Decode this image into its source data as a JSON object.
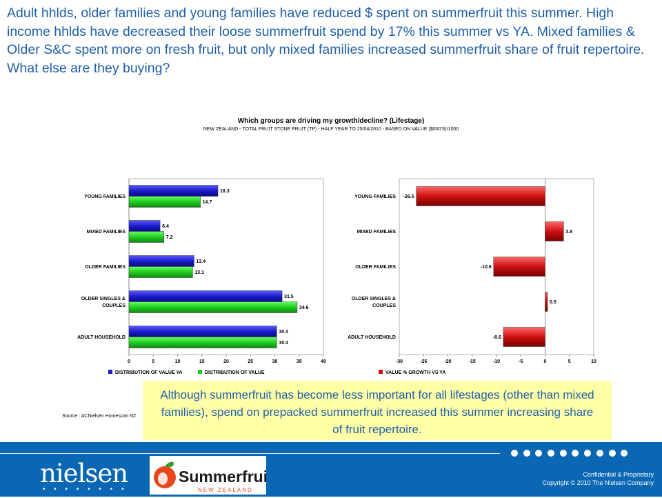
{
  "headline": "Adult hhlds, older families and young families have reduced $ spent on summerfruit this summer. High income hhlds have decreased their loose summerfruit spend by 17% this summer vs YA. Mixed families & Older S&C spent more on fresh fruit, but only mixed families increased summerfruit share of fruit repertoire. What else are they buying?",
  "chart_title": "Which groups are driving my growth/decline? (Lifestage)",
  "chart_subtitle": "NEW ZEALAND - TOTAL  FRUIT STONE FRUIT (TP)  - HALF YEAR TO 25/04/2010  - BASED ON VALUE ($000'S)/1000",
  "source": "Source : ACNielsen Homescan NZ",
  "callout": "Although summerfruit has become less important for all lifestages (other than mixed families), spend on prepacked summerfruit increased this summer increasing share of fruit repertoire.",
  "chart_data": [
    {
      "type": "bar",
      "orientation": "horizontal",
      "categories": [
        "YOUNG FAMILIES",
        "MIXED FAMILIES",
        "OLDER FAMILIES",
        "OLDER SINGLES & COUPLES",
        "ADULT HOUSEHOLD"
      ],
      "series": [
        {
          "name": "DISTRIBUTION OF VALUE YA",
          "values": [
            18.3,
            6.4,
            13.4,
            31.5,
            30.4
          ],
          "color": "#1c1ccc"
        },
        {
          "name": "DISTRIBUTION OF VALUE",
          "values": [
            14.7,
            7.2,
            13.1,
            34.6,
            30.4
          ],
          "color": "#22cc22"
        }
      ],
      "xlim": [
        0,
        40
      ],
      "xticks": [
        "0",
        "5",
        "10",
        "15",
        "20",
        "25",
        "30",
        "35",
        "40"
      ],
      "legend": "bottom"
    },
    {
      "type": "bar",
      "orientation": "horizontal",
      "categories": [
        "YOUNG FAMILIES",
        "MIXED FAMILIES",
        "OLDER FAMILIES",
        "OLDER SINGLES & COUPLES",
        "ADULT HOUSEHOLD"
      ],
      "series": [
        {
          "name": "VALUE % GROWTH VS YA",
          "values": [
            -26.5,
            3.8,
            -10.6,
            0.5,
            -8.6
          ],
          "color": "#cc1111"
        }
      ],
      "xlim": [
        -30,
        10
      ],
      "xticks": [
        "-30",
        "-25",
        "-20",
        "-15",
        "-10",
        "-5",
        "0",
        "5",
        "10"
      ],
      "legend": "bottom"
    }
  ],
  "footer": {
    "nielsen_logo": "nielsen",
    "summerfruit_logo_text": "Summerfruit",
    "summerfruit_logo_sub": "NEW ZEALAND",
    "confidential": "Confidential & Proprietary",
    "copyright": "Copyright © 2010 The Nielsen Company"
  }
}
